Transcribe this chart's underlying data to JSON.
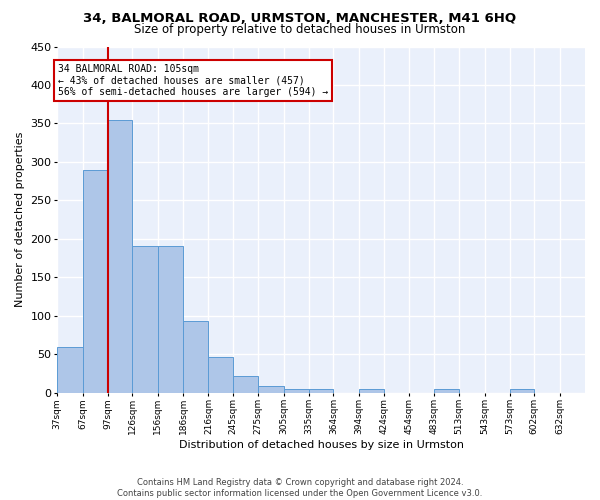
{
  "title": "34, BALMORAL ROAD, URMSTON, MANCHESTER, M41 6HQ",
  "subtitle": "Size of property relative to detached houses in Urmston",
  "xlabel": "Distribution of detached houses by size in Urmston",
  "ylabel": "Number of detached properties",
  "bar_values": [
    59,
    290,
    355,
    190,
    190,
    93,
    46,
    22,
    9,
    5,
    5,
    0,
    4,
    0,
    0,
    4,
    0,
    0,
    4,
    0
  ],
  "bin_labels": [
    "37sqm",
    "67sqm",
    "97sqm",
    "126sqm",
    "156sqm",
    "186sqm",
    "216sqm",
    "245sqm",
    "275sqm",
    "305sqm",
    "335sqm",
    "364sqm",
    "394sqm",
    "424sqm",
    "454sqm",
    "483sqm",
    "513sqm",
    "543sqm",
    "573sqm",
    "602sqm",
    "632sqm"
  ],
  "bar_color": "#aec6e8",
  "bar_edge_color": "#5b9bd5",
  "bg_color": "#eaf0fb",
  "grid_color": "#ffffff",
  "vline_color": "#cc0000",
  "annotation_text": "34 BALMORAL ROAD: 105sqm\n← 43% of detached houses are smaller (457)\n56% of semi-detached houses are larger (594) →",
  "annotation_box_color": "#ffffff",
  "annotation_box_edge": "#cc0000",
  "ylim": [
    0,
    450
  ],
  "bin_edges": [
    37,
    67,
    97,
    126,
    156,
    186,
    216,
    245,
    275,
    305,
    335,
    364,
    394,
    424,
    454,
    483,
    513,
    543,
    573,
    602,
    632
  ]
}
